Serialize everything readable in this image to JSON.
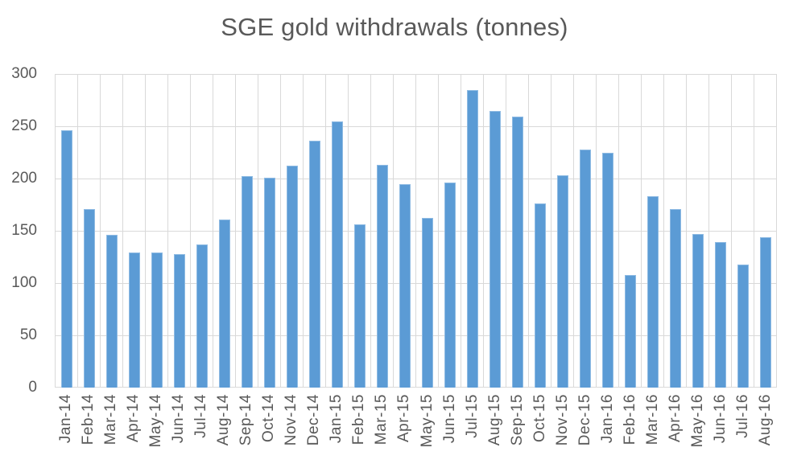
{
  "chart_data": {
    "type": "bar",
    "title": "SGE gold withdrawals (tonnes)",
    "categories": [
      "Jan-14",
      "Feb-14",
      "Mar-14",
      "Apr-14",
      "May-14",
      "Jun-14",
      "Jul-14",
      "Aug-14",
      "Sep-14",
      "Oct-14",
      "Nov-14",
      "Dec-14",
      "Jan-15",
      "Feb-15",
      "Mar-15",
      "Apr-15",
      "May-15",
      "Jun-15",
      "Jul-15",
      "Aug-15",
      "Sep-15",
      "Oct-15",
      "Nov-15",
      "Dec-15",
      "Jan-16",
      "Feb-16",
      "Mar-16",
      "Apr-16",
      "May-16",
      "Jun-16",
      "Jul-16",
      "Aug-16"
    ],
    "values": [
      246,
      171,
      146,
      129,
      129,
      128,
      137,
      161,
      202,
      201,
      212,
      236,
      255,
      156,
      213,
      195,
      162,
      196,
      285,
      265,
      259,
      176,
      203,
      228,
      225,
      108,
      183,
      171,
      147,
      139,
      118,
      144
    ],
    "xlabel": "",
    "ylabel": "",
    "ylim": [
      0,
      300
    ],
    "yticks": [
      0,
      50,
      100,
      150,
      200,
      250,
      300
    ],
    "grid": "horizontal-and-vertical",
    "legend": "none",
    "bar_color": "#5b9bd5",
    "gridline_color": "#d9d9d9",
    "text_color": "#595959"
  }
}
